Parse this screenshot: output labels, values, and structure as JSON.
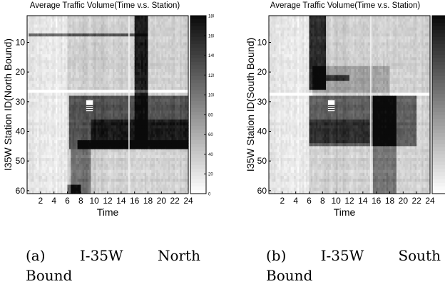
{
  "chart_data": [
    {
      "type": "heatmap",
      "title": "Average Traffic Volume(Time v.s. Station)",
      "xlabel": "Time",
      "ylabel": "I35W Station ID(North Bound)",
      "x_ticks": [
        "2",
        "4",
        "6",
        "8",
        "10",
        "12",
        "14",
        "16",
        "18",
        "20",
        "22",
        "24"
      ],
      "y_ticks": [
        "10",
        "20",
        "30",
        "40",
        "50",
        "60"
      ],
      "xlim": [
        0,
        24
      ],
      "ylim": [
        1,
        61
      ],
      "colorbar": {
        "min": 0,
        "max": 180,
        "ticks": [
          "180",
          "160",
          "140",
          "120",
          "100",
          "80",
          "60",
          "40",
          "20",
          "0"
        ]
      },
      "caption": {
        "label": "(a)",
        "words": [
          "I-35W",
          "North"
        ],
        "line2": "Bound"
      },
      "bands": [
        {
          "t0": 6.3,
          "t1": 24,
          "s0": 28,
          "s1": 46,
          "v": 95
        },
        {
          "t0": 6.5,
          "t1": 9.5,
          "s0": 46,
          "s1": 61,
          "v": 70
        },
        {
          "t0": 16,
          "t1": 18,
          "s0": 1,
          "s1": 28,
          "v": 135
        },
        {
          "t0": 16,
          "t1": 18,
          "s0": 28,
          "s1": 46,
          "v": 55
        },
        {
          "t0": 0.2,
          "t1": 18,
          "s0": 7.5,
          "s1": 8.3,
          "v": 90
        },
        {
          "t0": 9.5,
          "t1": 24,
          "s0": 36,
          "s1": 44,
          "v": 40
        },
        {
          "t0": 7.5,
          "t1": 24,
          "s0": 43,
          "s1": 46,
          "v": 60
        },
        {
          "t0": 6,
          "t1": 8,
          "s0": 58,
          "s1": 61,
          "v": 80
        },
        {
          "t0": 0,
          "t1": 24,
          "s0": 26.5,
          "s1": 27.2,
          "v": -40
        }
      ],
      "patches": [
        {
          "t0": 8.8,
          "t1": 9.8,
          "s0": 29.5,
          "s1": 33.2
        }
      ],
      "highlight_time": 15.1
    },
    {
      "type": "heatmap",
      "title": "Average Traffic Volume(Time v.s. Station)",
      "xlabel": "Time",
      "ylabel": "I35W Station ID(South Bound)",
      "x_ticks": [
        "2",
        "4",
        "6",
        "8",
        "10",
        "12",
        "14",
        "16",
        "18",
        "20",
        "22",
        "24"
      ],
      "y_ticks": [
        "10",
        "20",
        "30",
        "40",
        "50",
        "60"
      ],
      "xlim": [
        0,
        24
      ],
      "ylim": [
        1,
        61
      ],
      "colorbar": {
        "min": 0,
        "max": 180,
        "ticks": []
      },
      "caption": {
        "label": "(b)",
        "words": [
          "I-35W",
          "South"
        ],
        "line2": "Bound"
      },
      "bands": [
        {
          "t0": 6,
          "t1": 8.5,
          "s0": 1,
          "s1": 26,
          "v": 120
        },
        {
          "t0": 8,
          "t1": 12,
          "s0": 21,
          "s1": 23,
          "v": 80
        },
        {
          "t0": 6,
          "t1": 22,
          "s0": 28,
          "s1": 45,
          "v": 85
        },
        {
          "t0": 15.5,
          "t1": 19,
          "s0": 28,
          "s1": 61,
          "v": 70
        },
        {
          "t0": 6,
          "t1": 15,
          "s0": 36,
          "s1": 44,
          "v": 35
        },
        {
          "t0": 6.5,
          "t1": 18,
          "s0": 18,
          "s1": 28,
          "v": 35
        },
        {
          "t0": 0,
          "t1": 24,
          "s0": 26.8,
          "s1": 27.6,
          "v": -40
        }
      ],
      "patches": [
        {
          "t0": 8.8,
          "t1": 9.8,
          "s0": 29.5,
          "s1": 33.2
        }
      ],
      "highlight_time": 15.1
    }
  ]
}
